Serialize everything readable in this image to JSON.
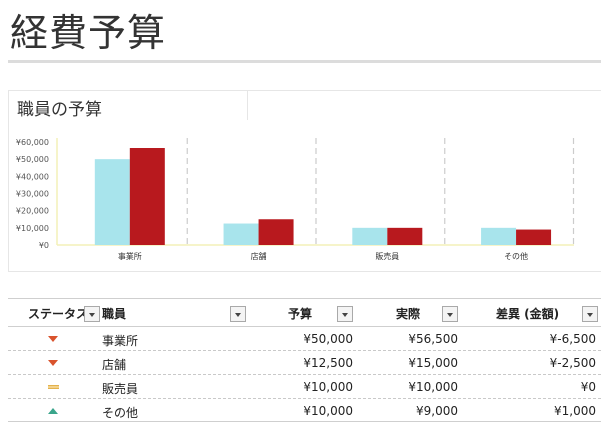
{
  "page_title": "経費予算",
  "chart": {
    "title": "職員の予算",
    "y_ticks": [
      "¥60,000",
      "¥50,000",
      "¥40,000",
      "¥30,000",
      "¥20,000",
      "¥10,000",
      "¥0"
    ],
    "colors": {
      "budget": "#a8e4ec",
      "actual": "#b8191e",
      "grid": "#cccccc",
      "axis": "#f3f0b8"
    }
  },
  "chart_data": {
    "type": "bar",
    "categories": [
      "事業所",
      "店舗",
      "販売員",
      "その他"
    ],
    "series": [
      {
        "values": [
          50000,
          12500,
          10000,
          10000
        ]
      },
      {
        "values": [
          56500,
          15000,
          10000,
          9000
        ]
      }
    ],
    "ylim": [
      0,
      60000
    ],
    "grid": false
  },
  "table": {
    "headers": {
      "status": "ステータス",
      "staff": "職員",
      "budget": "予算",
      "actual": "実際",
      "variance": "差異 (金額)"
    },
    "rows": [
      {
        "status": "down",
        "staff": "事業所",
        "budget": "¥50,000",
        "actual": "¥56,500",
        "variance": "¥-6,500"
      },
      {
        "status": "down",
        "staff": "店舗",
        "budget": "¥12,500",
        "actual": "¥15,000",
        "variance": "¥-2,500"
      },
      {
        "status": "equal",
        "staff": "販売員",
        "budget": "¥10,000",
        "actual": "¥10,000",
        "variance": "¥0"
      },
      {
        "status": "up",
        "staff": "その他",
        "budget": "¥10,000",
        "actual": "¥9,000",
        "variance": "¥1,000"
      }
    ]
  }
}
